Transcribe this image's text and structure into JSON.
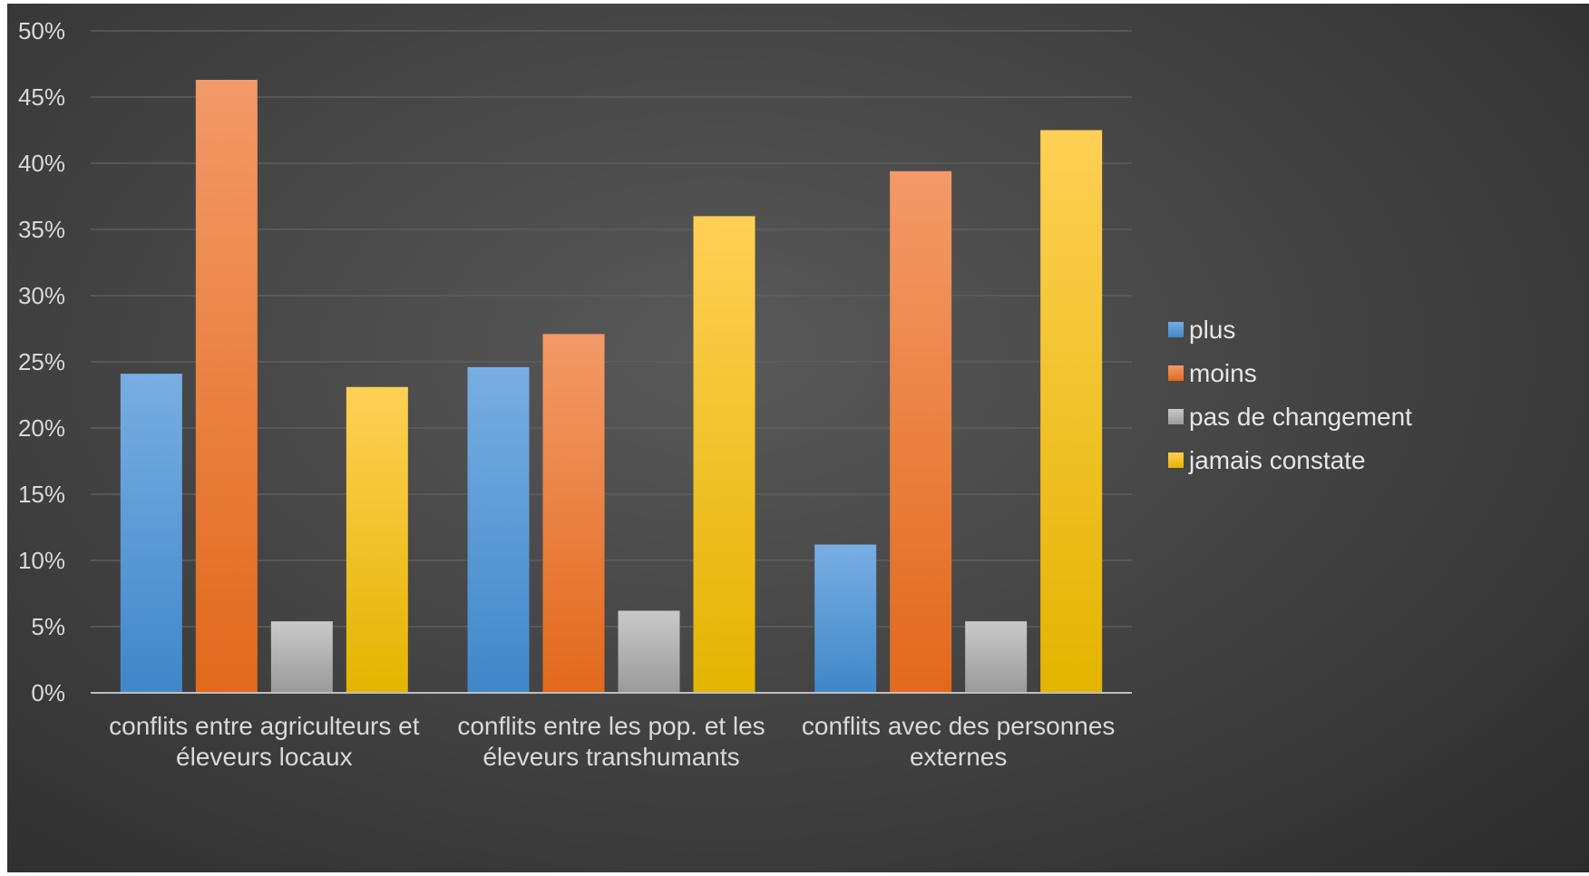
{
  "chart_data": {
    "type": "bar",
    "categories": [
      [
        "conflits entre agriculteurs et",
        "éleveurs locaux"
      ],
      [
        "conflits entre les pop. et les",
        "éleveurs transhumants"
      ],
      [
        "conflits avec des personnes",
        "externes"
      ]
    ],
    "series": [
      {
        "name": "plus",
        "values": [
          24.1,
          24.6,
          11.2
        ]
      },
      {
        "name": "moins",
        "values": [
          46.3,
          27.1,
          39.4
        ]
      },
      {
        "name": "pas de changement",
        "values": [
          5.4,
          6.2,
          5.4
        ]
      },
      {
        "name": "jamais constate",
        "values": [
          23.1,
          36.0,
          42.5
        ]
      }
    ],
    "y_ticks": [
      "0%",
      "5%",
      "10%",
      "15%",
      "20%",
      "25%",
      "30%",
      "35%",
      "40%",
      "45%",
      "50%"
    ],
    "ylim": [
      0,
      50
    ],
    "grid": true,
    "legend_position": "right",
    "title": "",
    "xlabel": "",
    "ylabel": "",
    "colors": {
      "plus": [
        "#78aee2",
        "#3f87c9"
      ],
      "moins": [
        "#f39a68",
        "#e2691c"
      ],
      "pas de changement": [
        "#c9c9c9",
        "#9a9a9a"
      ],
      "jamais constate": [
        "#ffd055",
        "#e3b400"
      ],
      "grid": "#5e5e5e",
      "axis": "#bfbfbf"
    }
  }
}
